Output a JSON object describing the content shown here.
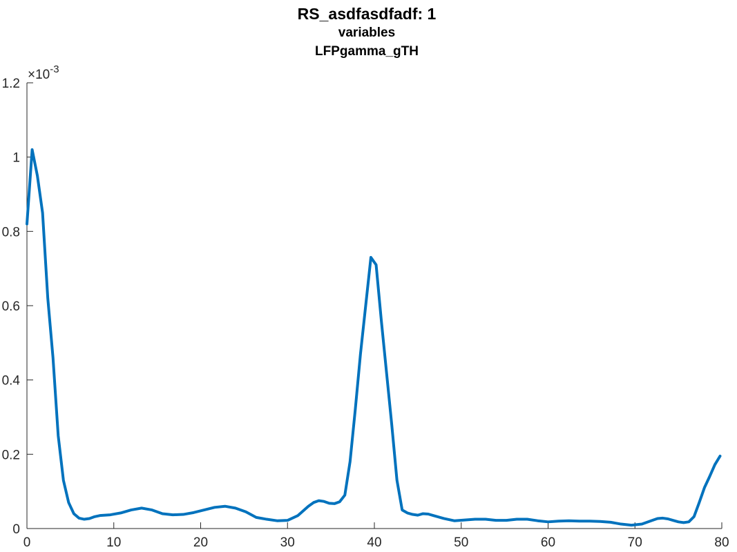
{
  "chart_data": {
    "type": "line",
    "title": "RS_asdfasdfadf: 1",
    "subtitles": [
      "variables",
      "LFPgamma_gTH"
    ],
    "exponent_label": {
      "base": "×10",
      "exp": "-3"
    },
    "xlabel": "",
    "ylabel": "",
    "xlim": [
      0,
      80
    ],
    "ylim": [
      0,
      0.0012
    ],
    "x_ticks": [
      0,
      10,
      20,
      30,
      40,
      50,
      60,
      70,
      80
    ],
    "x_tick_labels": [
      "0",
      "10",
      "20",
      "30",
      "40",
      "50",
      "60",
      "70",
      "80"
    ],
    "y_ticks": [
      0,
      0.0002,
      0.0004,
      0.0006,
      0.0008,
      0.001,
      0.0012
    ],
    "y_tick_labels": [
      "0",
      "0.2",
      "0.4",
      "0.6",
      "0.8",
      "1",
      "1.2"
    ],
    "grid": false,
    "line_color": "#0072BD",
    "series": [
      {
        "x": [
          0,
          0.6,
          1.2,
          1.8,
          2.4,
          3.0,
          3.6,
          4.2,
          4.8,
          5.4,
          6.0,
          6.6,
          7.2,
          7.8,
          8.4,
          9.0,
          9.6,
          10.8,
          12.0,
          13.2,
          14.4,
          15.6,
          16.8,
          18.0,
          19.2,
          20.4,
          21.6,
          22.8,
          24.0,
          25.2,
          26.4,
          27.6,
          28.8,
          30.0,
          31.2,
          32.4,
          33.0,
          33.6,
          34.2,
          34.8,
          35.4,
          36.0,
          36.6,
          37.2,
          37.8,
          38.4,
          39.0,
          39.6,
          40.2,
          40.8,
          41.4,
          42.0,
          42.6,
          43.2,
          43.8,
          44.4,
          45.0,
          45.6,
          46.2,
          46.8,
          48.0,
          49.2,
          50.4,
          51.6,
          52.8,
          54.0,
          55.2,
          56.4,
          57.6,
          58.8,
          60.0,
          61.2,
          62.4,
          63.6,
          64.8,
          66.0,
          67.2,
          68.4,
          69.6,
          70.8,
          72.0,
          72.6,
          73.2,
          73.8,
          74.4,
          75.0,
          75.6,
          76.2,
          76.8,
          77.4,
          78.0,
          78.6,
          79.2,
          79.8
        ],
        "values": [
          0.00082,
          0.00102,
          0.00095,
          0.00085,
          0.00062,
          0.00046,
          0.00025,
          0.00013,
          7e-05,
          4e-05,
          2.8e-05,
          2.5e-05,
          2.7e-05,
          3.2e-05,
          3.5e-05,
          3.6e-05,
          3.7e-05,
          4.2e-05,
          5e-05,
          5.5e-05,
          5e-05,
          4e-05,
          3.7e-05,
          3.8e-05,
          4.3e-05,
          5e-05,
          5.7e-05,
          6e-05,
          5.5e-05,
          4.5e-05,
          3e-05,
          2.5e-05,
          2.1e-05,
          2.2e-05,
          3.5e-05,
          6e-05,
          7e-05,
          7.5e-05,
          7.3e-05,
          6.8e-05,
          6.7e-05,
          7.2e-05,
          9e-05,
          0.00018,
          0.00032,
          0.00047,
          0.0006,
          0.00073,
          0.00071,
          0.00056,
          0.00042,
          0.00028,
          0.00013,
          5e-05,
          4.2e-05,
          3.8e-05,
          3.6e-05,
          4e-05,
          3.9e-05,
          3.5e-05,
          2.7e-05,
          2.1e-05,
          2.3e-05,
          2.5e-05,
          2.5e-05,
          2.2e-05,
          2.2e-05,
          2.5e-05,
          2.5e-05,
          2.1e-05,
          1.8e-05,
          2e-05,
          2.1e-05,
          2e-05,
          2e-05,
          1.9e-05,
          1.7e-05,
          1.2e-05,
          9e-06,
          1.2e-05,
          2.2e-05,
          2.7e-05,
          2.8e-05,
          2.6e-05,
          2.2e-05,
          1.8e-05,
          1.6e-05,
          1.8e-05,
          3.2e-05,
          7e-05,
          0.00011,
          0.00014,
          0.000172,
          0.000195
        ]
      }
    ]
  }
}
